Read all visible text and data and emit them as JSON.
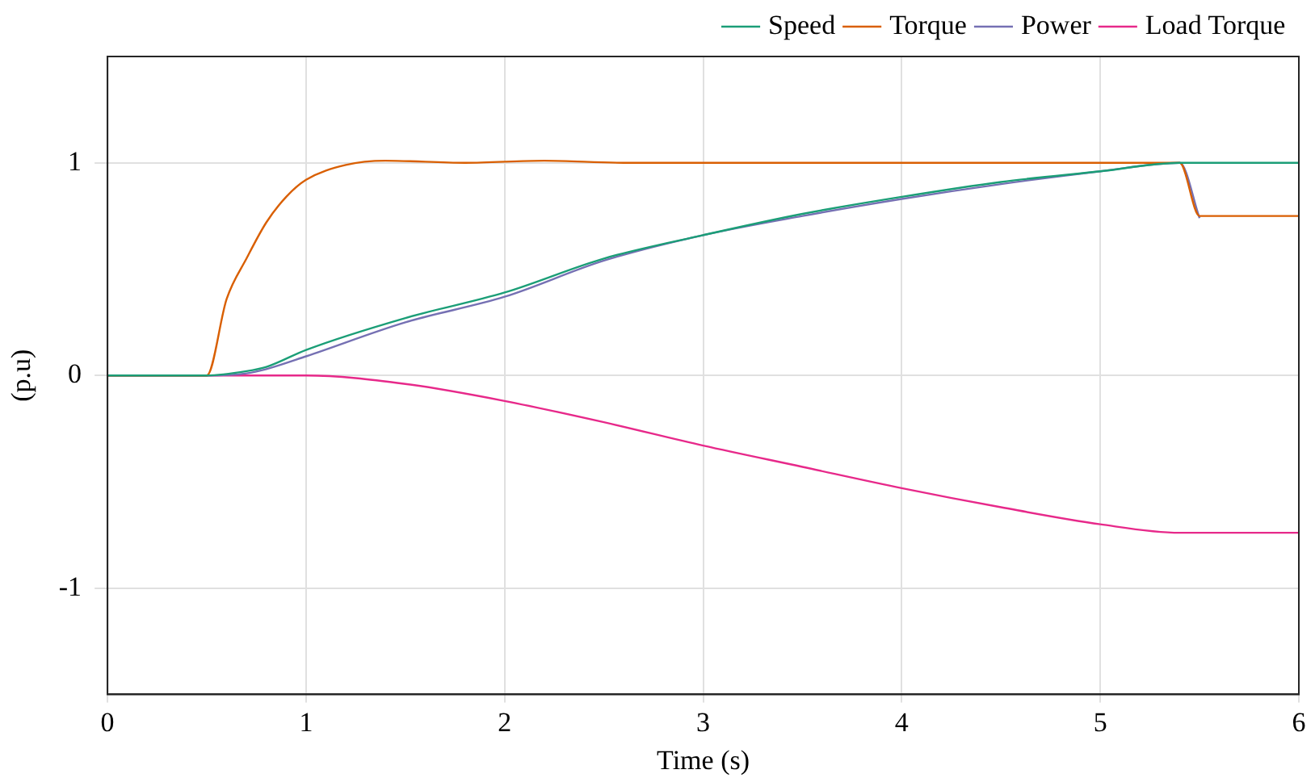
{
  "chart_data": {
    "type": "line",
    "xlabel": "Time (s)",
    "ylabel": "(p.u)",
    "xlim": [
      0,
      6
    ],
    "xticks": [
      0,
      1,
      2,
      3,
      4,
      5,
      6
    ],
    "ylim": [
      -1.5,
      1.5
    ],
    "yticks": [
      -1,
      0,
      1
    ],
    "grid": true,
    "legend": "top right",
    "marker": "none",
    "line_style": "solid",
    "series": [
      {
        "name": "Speed",
        "color": "#1b9e77",
        "x": [
          0,
          0.5,
          0.7,
          0.8,
          1.0,
          1.5,
          2.0,
          2.5,
          3.0,
          3.5,
          4.0,
          4.5,
          5.0,
          5.4,
          6.0
        ],
        "values": [
          0,
          0,
          0.02,
          0.04,
          0.12,
          0.27,
          0.39,
          0.55,
          0.66,
          0.76,
          0.84,
          0.91,
          0.96,
          1.0,
          1.0
        ]
      },
      {
        "name": "Torque",
        "color": "#d95f02",
        "x": [
          0,
          0.5,
          0.6,
          0.7,
          0.8,
          0.9,
          1.0,
          1.2,
          1.4,
          1.8,
          2.2,
          2.6,
          3.0,
          4.0,
          5.0,
          5.4,
          5.5,
          6.0
        ],
        "values": [
          0,
          0,
          0.36,
          0.55,
          0.72,
          0.84,
          0.92,
          0.99,
          1.01,
          1.0,
          1.01,
          1.0,
          1.0,
          1.0,
          1.0,
          1.0,
          0.75,
          0.75
        ]
      },
      {
        "name": "Power",
        "color": "#7570b3",
        "x": [
          0,
          0.5,
          0.7,
          0.8,
          1.0,
          1.5,
          2.0,
          2.5,
          3.0,
          3.5,
          4.0,
          4.5,
          5.0,
          5.4,
          5.5
        ],
        "values": [
          0,
          0,
          0.01,
          0.03,
          0.09,
          0.25,
          0.37,
          0.54,
          0.66,
          0.75,
          0.83,
          0.9,
          0.96,
          1.0,
          0.74
        ]
      },
      {
        "name": "Load Torque",
        "color": "#e7298a",
        "x": [
          0,
          1.0,
          1.5,
          2.0,
          2.5,
          3.0,
          3.5,
          4.0,
          4.5,
          5.0,
          5.4,
          6.0
        ],
        "values": [
          0,
          0,
          -0.04,
          -0.12,
          -0.22,
          -0.33,
          -0.43,
          -0.53,
          -0.62,
          -0.7,
          -0.74,
          -0.74
        ]
      }
    ]
  }
}
